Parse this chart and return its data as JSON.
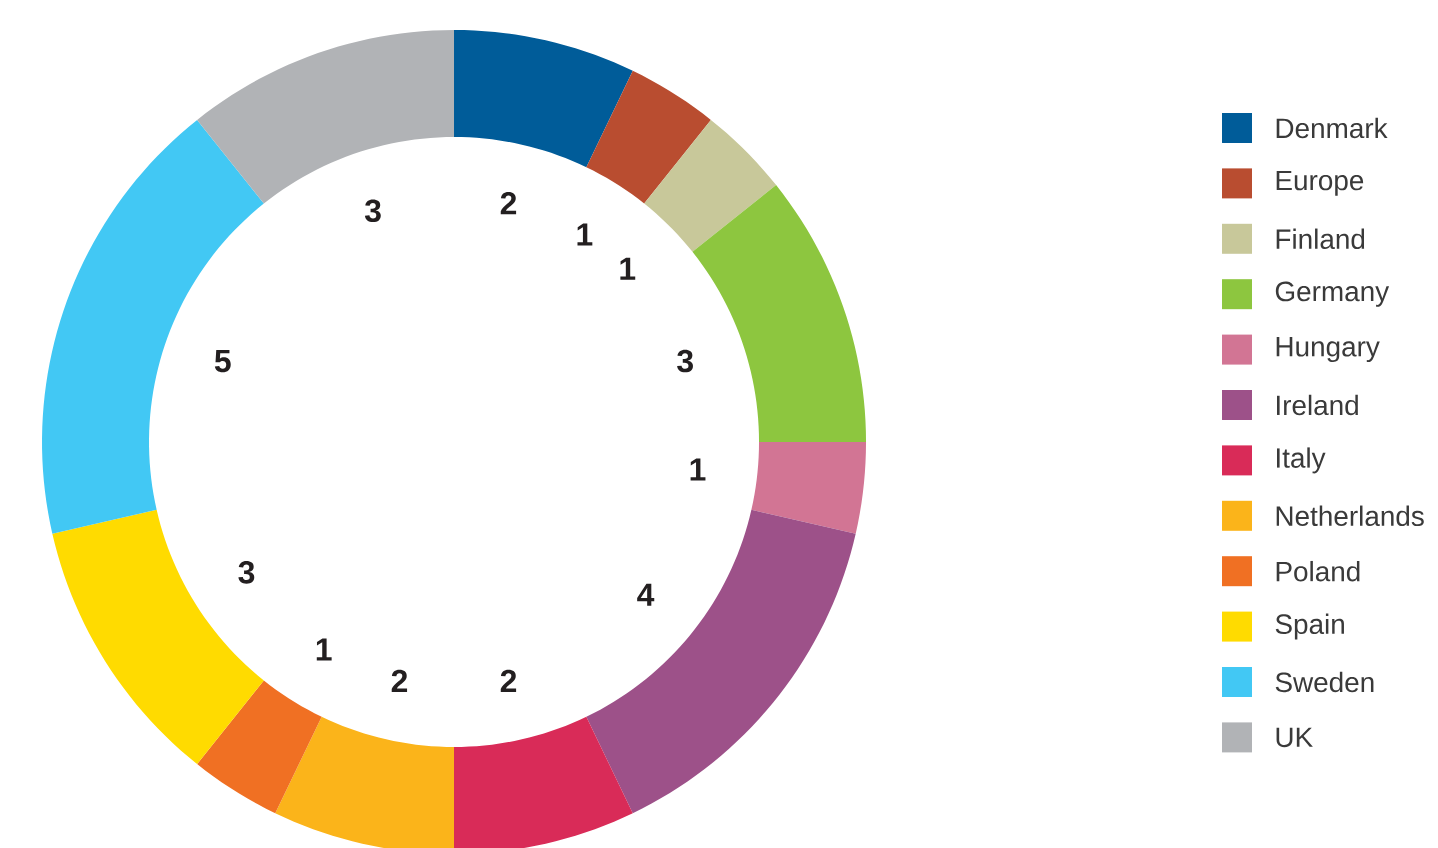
{
  "chart_data": {
    "type": "donut",
    "categories": [
      "Denmark",
      "Europe",
      "Finland",
      "Germany",
      "Hungary",
      "Ireland",
      "Italy",
      "Netherlands",
      "Poland",
      "Spain",
      "Sweden",
      "UK"
    ],
    "values": [
      2,
      1,
      1,
      3,
      1,
      4,
      2,
      2,
      1,
      3,
      5,
      3
    ],
    "colors": [
      "#005c99",
      "#b94d30",
      "#c8c89a",
      "#8dc63f",
      "#d27594",
      "#9d5189",
      "#d92b58",
      "#fbb41a",
      "#f07023",
      "#ffdb00",
      "#42c8f4",
      "#b1b3b6"
    ],
    "data_labels": true,
    "legend": "right"
  }
}
